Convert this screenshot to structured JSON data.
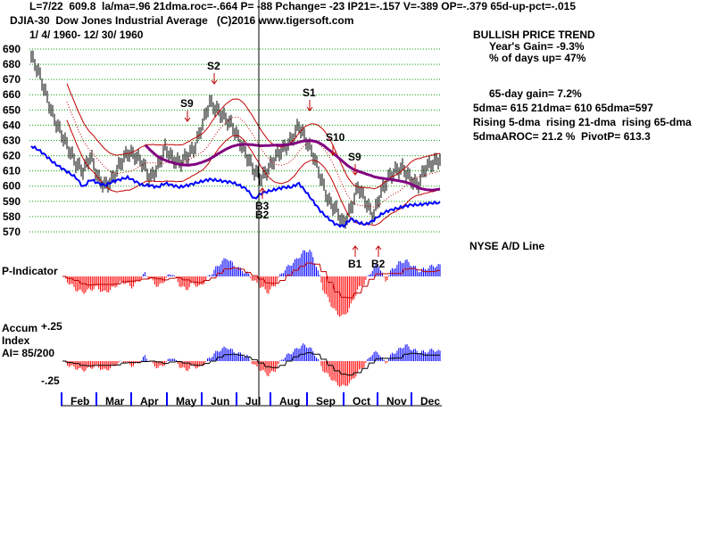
{
  "header": {
    "line1": "L=7/22  609.8  la/ma=.96 21dma.roc=-.664 P= -88 Pchange= -23 IP21=-.157 V=-389 OP=-.379 65d-up-pct=-.015",
    "line2": "DJIA-30  Dow Jones Industrial Average   (C)2016 www.tigersoft.com",
    "line3": "1/ 4/ 1960- 12/ 30/ 1960"
  },
  "stats": {
    "trend": "BULLISH PRICE TREND",
    "gain": "Year's Gain= -9.3%",
    "days_up": "% of days up= 47%",
    "gain65": "65-day gain= 7.2%",
    "dmas": "5dma= 615 21dma= 610 65dma=597",
    "rising": "Rising 5-dma  rising 21-dma  rising 65-dma",
    "aroc": "5dmaAROC= 21.2 %  PivotP= 613.3"
  },
  "labels": {
    "ad": "NYSE A/D Line",
    "pind": "P-Indicator",
    "accum1": "Accum",
    "accum2": "Index",
    "ai": "AI= 85/200",
    "plus": "+.25",
    "minus": "-.25"
  },
  "colors": {
    "grid": "#00a000",
    "ad": "#0000ff",
    "ma": "#800080",
    "band": "#c00000",
    "pos": "#0000ff",
    "neg": "#ff0000"
  },
  "chart_data": {
    "type": "bar",
    "title": "DJIA-30 Dow Jones Industrial Average",
    "ylim": [
      565,
      695
    ],
    "yticks": [
      570,
      580,
      590,
      600,
      610,
      620,
      630,
      640,
      650,
      660,
      670,
      680,
      690
    ],
    "months": [
      "Feb",
      "Mar",
      "Apr",
      "May",
      "Jun",
      "Jul",
      "Aug",
      "Sep",
      "Oct",
      "Nov",
      "Dec"
    ],
    "weekly_close": [
      685,
      675,
      660,
      645,
      635,
      625,
      615,
      610,
      620,
      605,
      600,
      605,
      615,
      622,
      620,
      615,
      605,
      612,
      625,
      618,
      615,
      620,
      625,
      640,
      655,
      650,
      645,
      640,
      630,
      620,
      610,
      605,
      612,
      620,
      625,
      630,
      640,
      630,
      620,
      605,
      590,
      585,
      575,
      585,
      600,
      590,
      580,
      595,
      605,
      610,
      612,
      605,
      600,
      612,
      615,
      618
    ],
    "ad_line": [
      62,
      58,
      52,
      45,
      40,
      35,
      30,
      20,
      28,
      24,
      22,
      26,
      28,
      30,
      26,
      22,
      22,
      20,
      24,
      22,
      20,
      22,
      24,
      26,
      28,
      27,
      26,
      25,
      22,
      18,
      8,
      14,
      16,
      18,
      20,
      20,
      24,
      15,
      5,
      -5,
      -12,
      -18,
      -20,
      -12,
      -16,
      -18,
      -14,
      -8,
      -4,
      -2,
      0,
      2,
      2,
      3,
      4,
      4
    ],
    "p_indicator": [
      0,
      -5,
      -10,
      -12,
      -10,
      -8,
      -12,
      -10,
      -6,
      -4,
      -8,
      -4,
      2,
      -3,
      -8,
      -2,
      3,
      -6,
      -10,
      -5,
      -8,
      -2,
      4,
      10,
      14,
      8,
      5,
      2,
      -4,
      -8,
      -12,
      -6,
      3,
      8,
      12,
      18,
      20,
      8,
      -10,
      -20,
      -28,
      -30,
      -22,
      -10,
      -5,
      4,
      10,
      -4,
      5,
      10,
      12,
      8,
      4,
      6,
      8,
      8
    ],
    "accum_index": [
      0,
      -4,
      -6,
      -8,
      -6,
      -4,
      -8,
      -6,
      -2,
      0,
      -4,
      -2,
      4,
      -2,
      -6,
      -2,
      4,
      -4,
      -8,
      -4,
      -6,
      0,
      6,
      10,
      12,
      8,
      6,
      4,
      -4,
      -8,
      -12,
      -8,
      2,
      6,
      10,
      14,
      12,
      4,
      -8,
      -14,
      -20,
      -22,
      -18,
      -10,
      -4,
      6,
      8,
      -2,
      6,
      10,
      14,
      10,
      8,
      8,
      10,
      8
    ],
    "signals": [
      {
        "label": "S9",
        "week": 20,
        "type": "sell"
      },
      {
        "label": "S2",
        "week": 24,
        "type": "sell"
      },
      {
        "label": "S1",
        "week": 36,
        "type": "sell"
      },
      {
        "label": "S10",
        "week": 38,
        "type": "sell"
      },
      {
        "label": "S9",
        "week": 44,
        "type": "sell"
      },
      {
        "label": "B3",
        "week": 30,
        "type": "buy"
      },
      {
        "label": "B2",
        "week": 30,
        "type": "buy"
      },
      {
        "label": "B1",
        "week": 43,
        "type": "buy"
      },
      {
        "label": "B2",
        "week": 46,
        "type": "buy"
      }
    ]
  }
}
